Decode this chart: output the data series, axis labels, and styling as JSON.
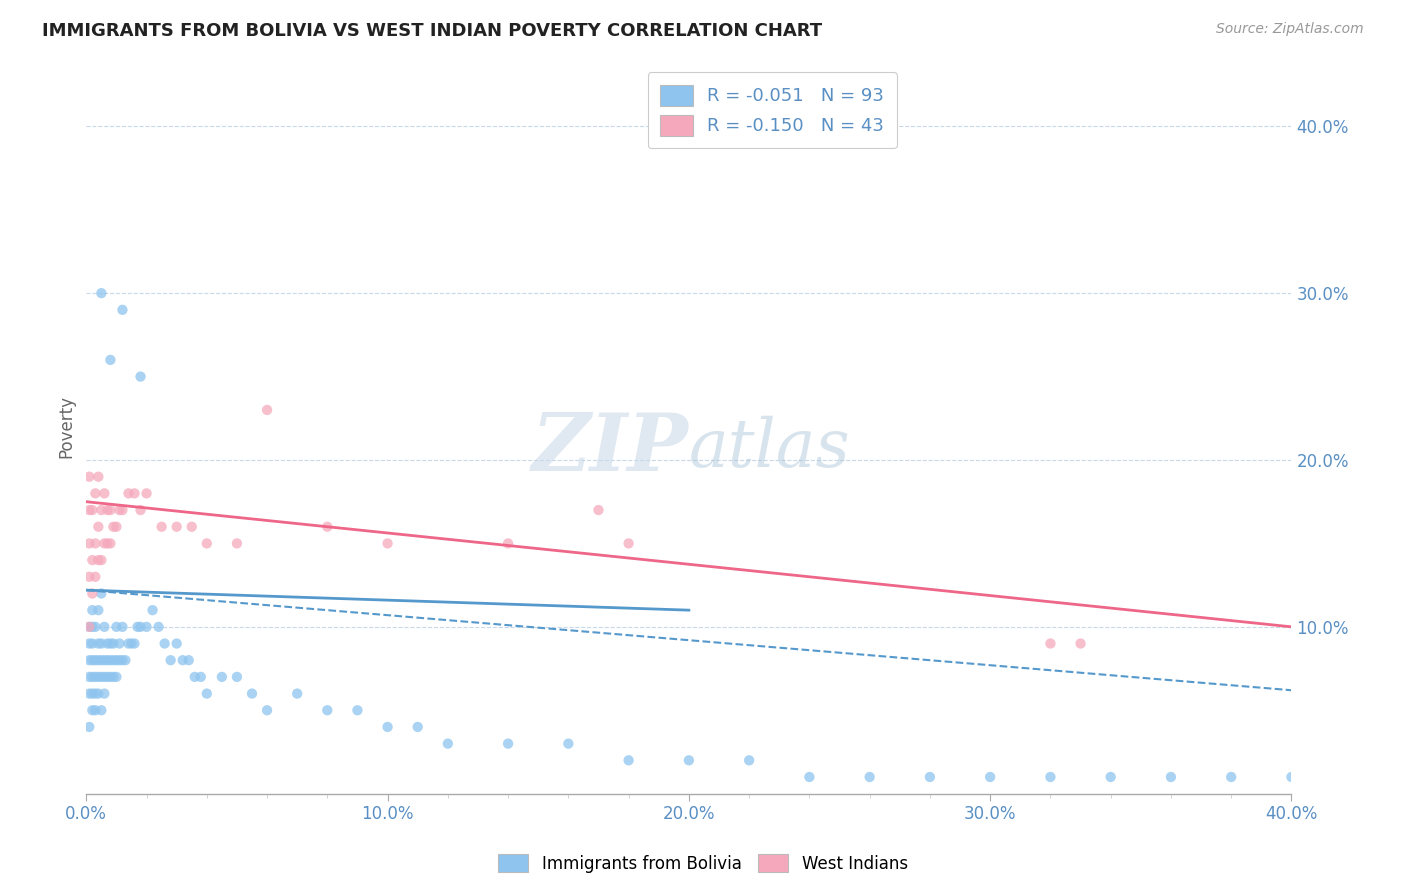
{
  "title": "IMMIGRANTS FROM BOLIVIA VS WEST INDIAN POVERTY CORRELATION CHART",
  "source_text": "Source: ZipAtlas.com",
  "ylabel": "Poverty",
  "x_min": 0.0,
  "x_max": 0.4,
  "y_min": 0.0,
  "y_max": 0.44,
  "x_tick_labels": [
    "0.0%",
    "",
    "",
    "",
    "",
    "10.0%",
    "",
    "",
    "",
    "",
    "20.0%",
    "",
    "",
    "",
    "",
    "30.0%",
    "",
    "",
    "",
    "",
    "40.0%"
  ],
  "x_ticks": [
    0.0,
    0.02,
    0.04,
    0.06,
    0.08,
    0.1,
    0.12,
    0.14,
    0.16,
    0.18,
    0.2,
    0.22,
    0.24,
    0.26,
    0.28,
    0.3,
    0.32,
    0.34,
    0.36,
    0.38,
    0.4
  ],
  "x_tick_labels_show": [
    "0.0%",
    "10.0%",
    "20.0%",
    "30.0%",
    "40.0%"
  ],
  "x_ticks_show": [
    0.0,
    0.1,
    0.2,
    0.3,
    0.4
  ],
  "y_tick_labels_right": [
    "10.0%",
    "20.0%",
    "30.0%",
    "40.0%"
  ],
  "y_ticks_right": [
    0.1,
    0.2,
    0.3,
    0.4
  ],
  "bolivia_color": "#8ec4ee",
  "west_indian_color": "#f5a8bc",
  "bolivia_trend_color": "#5599cc",
  "west_indian_trend_color": "#ee6688",
  "bolivia_R": -0.051,
  "bolivia_N": 93,
  "west_indian_R": -0.15,
  "west_indian_N": 43,
  "background_color": "#ffffff",
  "grid_color": "#c8d8e8",
  "title_color": "#222222",
  "axis_label_color": "#5a8fc4",
  "bolivia_trend_y0": 0.122,
  "bolivia_trend_y1": 0.098,
  "bolivia_trend_dash_y0": 0.122,
  "bolivia_trend_dash_y1": 0.062,
  "west_indian_trend_y0": 0.175,
  "west_indian_trend_y1": 0.1,
  "bolivia_scatter_x": [
    0.001,
    0.001,
    0.001,
    0.001,
    0.001,
    0.001,
    0.002,
    0.002,
    0.002,
    0.002,
    0.002,
    0.002,
    0.002,
    0.003,
    0.003,
    0.003,
    0.003,
    0.003,
    0.004,
    0.004,
    0.004,
    0.004,
    0.004,
    0.005,
    0.005,
    0.005,
    0.005,
    0.005,
    0.006,
    0.006,
    0.006,
    0.006,
    0.007,
    0.007,
    0.007,
    0.008,
    0.008,
    0.008,
    0.009,
    0.009,
    0.009,
    0.01,
    0.01,
    0.01,
    0.011,
    0.011,
    0.012,
    0.012,
    0.013,
    0.014,
    0.015,
    0.016,
    0.017,
    0.018,
    0.02,
    0.022,
    0.024,
    0.026,
    0.028,
    0.03,
    0.032,
    0.034,
    0.036,
    0.038,
    0.04,
    0.045,
    0.05,
    0.055,
    0.06,
    0.07,
    0.08,
    0.09,
    0.1,
    0.11,
    0.12,
    0.14,
    0.16,
    0.18,
    0.2,
    0.22,
    0.24,
    0.26,
    0.28,
    0.3,
    0.32,
    0.34,
    0.36,
    0.38,
    0.4,
    0.005,
    0.008,
    0.012,
    0.018
  ],
  "bolivia_scatter_y": [
    0.04,
    0.06,
    0.07,
    0.08,
    0.09,
    0.1,
    0.05,
    0.06,
    0.07,
    0.08,
    0.09,
    0.1,
    0.11,
    0.05,
    0.06,
    0.07,
    0.08,
    0.1,
    0.06,
    0.07,
    0.08,
    0.09,
    0.11,
    0.05,
    0.07,
    0.08,
    0.09,
    0.12,
    0.06,
    0.07,
    0.08,
    0.1,
    0.07,
    0.08,
    0.09,
    0.07,
    0.08,
    0.09,
    0.07,
    0.08,
    0.09,
    0.07,
    0.08,
    0.1,
    0.08,
    0.09,
    0.08,
    0.1,
    0.08,
    0.09,
    0.09,
    0.09,
    0.1,
    0.1,
    0.1,
    0.11,
    0.1,
    0.09,
    0.08,
    0.09,
    0.08,
    0.08,
    0.07,
    0.07,
    0.06,
    0.07,
    0.07,
    0.06,
    0.05,
    0.06,
    0.05,
    0.05,
    0.04,
    0.04,
    0.03,
    0.03,
    0.03,
    0.02,
    0.02,
    0.02,
    0.01,
    0.01,
    0.01,
    0.01,
    0.01,
    0.01,
    0.01,
    0.01,
    0.01,
    0.3,
    0.26,
    0.29,
    0.25
  ],
  "west_indian_scatter_x": [
    0.001,
    0.001,
    0.001,
    0.001,
    0.001,
    0.002,
    0.002,
    0.002,
    0.003,
    0.003,
    0.003,
    0.004,
    0.004,
    0.004,
    0.005,
    0.005,
    0.006,
    0.006,
    0.007,
    0.007,
    0.008,
    0.008,
    0.009,
    0.01,
    0.011,
    0.012,
    0.014,
    0.016,
    0.018,
    0.02,
    0.025,
    0.03,
    0.035,
    0.04,
    0.05,
    0.06,
    0.08,
    0.1,
    0.14,
    0.18,
    0.32,
    0.33,
    0.17
  ],
  "west_indian_scatter_y": [
    0.1,
    0.13,
    0.15,
    0.17,
    0.19,
    0.12,
    0.14,
    0.17,
    0.13,
    0.15,
    0.18,
    0.14,
    0.16,
    0.19,
    0.14,
    0.17,
    0.15,
    0.18,
    0.15,
    0.17,
    0.15,
    0.17,
    0.16,
    0.16,
    0.17,
    0.17,
    0.18,
    0.18,
    0.17,
    0.18,
    0.16,
    0.16,
    0.16,
    0.15,
    0.15,
    0.23,
    0.16,
    0.15,
    0.15,
    0.15,
    0.09,
    0.09,
    0.17
  ]
}
